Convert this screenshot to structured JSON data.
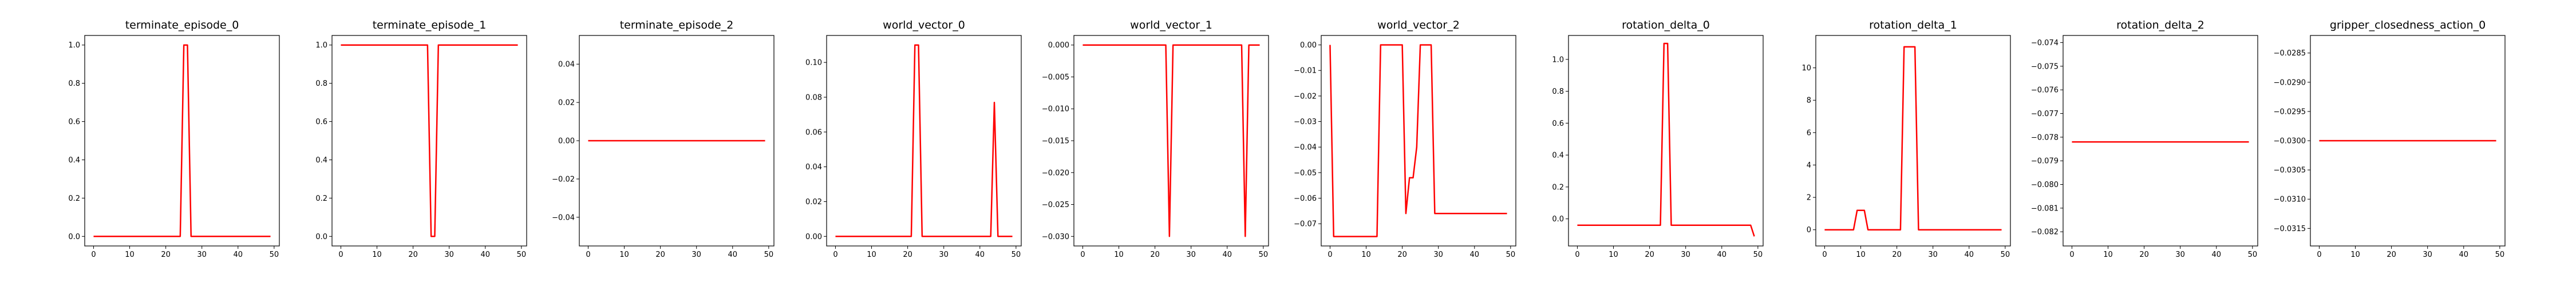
{
  "chart_data": [
    {
      "type": "line",
      "title": "terminate_episode_0",
      "xlim": [
        -2.45,
        51.45
      ],
      "ylim": [
        -0.05,
        1.05
      ],
      "xticks": [
        0,
        10,
        20,
        30,
        40,
        50
      ],
      "xtick_labels": [
        "0",
        "10",
        "20",
        "30",
        "40",
        "50"
      ],
      "yticks": [
        0.0,
        0.2,
        0.4,
        0.6,
        0.8,
        1.0
      ],
      "ytick_labels": [
        "0.0",
        "0.2",
        "0.4",
        "0.6",
        "0.8",
        "1.0"
      ],
      "series": [
        {
          "color": "#ff0000",
          "x": [
            0,
            24,
            25,
            26,
            27,
            49
          ],
          "y": [
            0,
            0,
            1,
            1,
            0,
            0
          ]
        }
      ]
    },
    {
      "type": "line",
      "title": "terminate_episode_1",
      "xlim": [
        -2.45,
        51.45
      ],
      "ylim": [
        -0.05,
        1.05
      ],
      "xticks": [
        0,
        10,
        20,
        30,
        40,
        50
      ],
      "xtick_labels": [
        "0",
        "10",
        "20",
        "30",
        "40",
        "50"
      ],
      "yticks": [
        0.0,
        0.2,
        0.4,
        0.6,
        0.8,
        1.0
      ],
      "ytick_labels": [
        "0.0",
        "0.2",
        "0.4",
        "0.6",
        "0.8",
        "1.0"
      ],
      "series": [
        {
          "color": "#ff0000",
          "x": [
            0,
            24,
            25,
            26,
            27,
            49
          ],
          "y": [
            1,
            1,
            0,
            0,
            1,
            1
          ]
        }
      ]
    },
    {
      "type": "line",
      "title": "terminate_episode_2",
      "xlim": [
        -2.45,
        51.45
      ],
      "ylim": [
        -0.055,
        0.055
      ],
      "xticks": [
        0,
        10,
        20,
        30,
        40,
        50
      ],
      "xtick_labels": [
        "0",
        "10",
        "20",
        "30",
        "40",
        "50"
      ],
      "yticks": [
        -0.04,
        -0.02,
        0.0,
        0.02,
        0.04
      ],
      "ytick_labels": [
        "−0.04",
        "−0.02",
        "0.00",
        "0.02",
        "0.04"
      ],
      "series": [
        {
          "color": "#ff0000",
          "x": [
            0,
            49
          ],
          "y": [
            0,
            0
          ]
        }
      ]
    },
    {
      "type": "line",
      "title": "world_vector_0",
      "xlim": [
        -2.45,
        51.45
      ],
      "ylim": [
        -0.0055,
        0.1155
      ],
      "xticks": [
        0,
        10,
        20,
        30,
        40,
        50
      ],
      "xtick_labels": [
        "0",
        "10",
        "20",
        "30",
        "40",
        "50"
      ],
      "yticks": [
        0.0,
        0.02,
        0.04,
        0.06,
        0.08,
        0.1
      ],
      "ytick_labels": [
        "0.00",
        "0.02",
        "0.04",
        "0.06",
        "0.08",
        "0.10"
      ],
      "series": [
        {
          "color": "#ff0000",
          "x": [
            0,
            21,
            22,
            23,
            24,
            43,
            44,
            45,
            49
          ],
          "y": [
            0,
            0,
            0.11,
            0.11,
            0,
            0,
            0.077,
            0,
            0
          ]
        }
      ]
    },
    {
      "type": "line",
      "title": "world_vector_1",
      "xlim": [
        -2.45,
        51.45
      ],
      "ylim": [
        -0.0315,
        0.0015
      ],
      "xticks": [
        0,
        10,
        20,
        30,
        40,
        50
      ],
      "xtick_labels": [
        "0",
        "10",
        "20",
        "30",
        "40",
        "50"
      ],
      "yticks": [
        0.0,
        -0.005,
        -0.01,
        -0.015,
        -0.02,
        -0.025,
        -0.03
      ],
      "ytick_labels": [
        "0.000",
        "−0.005",
        "−0.010",
        "−0.015",
        "−0.020",
        "−0.025",
        "−0.030"
      ],
      "series": [
        {
          "color": "#ff0000",
          "x": [
            0,
            23,
            24,
            25,
            44,
            45,
            46,
            49
          ],
          "y": [
            0,
            0,
            -0.03,
            0,
            0,
            -0.03,
            0,
            0
          ]
        }
      ]
    },
    {
      "type": "line",
      "title": "world_vector_2",
      "xlim": [
        -2.45,
        51.45
      ],
      "ylim": [
        -0.0787,
        0.0037
      ],
      "xticks": [
        0,
        10,
        20,
        30,
        40,
        50
      ],
      "xtick_labels": [
        "0",
        "10",
        "20",
        "30",
        "40",
        "50"
      ],
      "yticks": [
        0.0,
        -0.01,
        -0.02,
        -0.03,
        -0.04,
        -0.05,
        -0.06,
        -0.07
      ],
      "ytick_labels": [
        "0.00",
        "−0.01",
        "−0.02",
        "−0.03",
        "−0.04",
        "−0.05",
        "−0.06",
        "−0.07"
      ],
      "series": [
        {
          "color": "#ff0000",
          "x": [
            0,
            1,
            13,
            14,
            20,
            21,
            22,
            23,
            24,
            25,
            28,
            29,
            49
          ],
          "y": [
            0,
            -0.075,
            -0.075,
            0,
            0,
            -0.066,
            -0.052,
            -0.052,
            -0.04,
            0,
            0,
            -0.066,
            -0.066
          ]
        }
      ]
    },
    {
      "type": "line",
      "title": "rotation_delta_0",
      "xlim": [
        -2.45,
        51.45
      ],
      "ylim": [
        -0.17,
        1.15
      ],
      "xticks": [
        0,
        10,
        20,
        30,
        40,
        50
      ],
      "xtick_labels": [
        "0",
        "10",
        "20",
        "30",
        "40",
        "50"
      ],
      "yticks": [
        0.0,
        0.2,
        0.4,
        0.6,
        0.8,
        1.0
      ],
      "ytick_labels": [
        "0.0",
        "0.2",
        "0.4",
        "0.6",
        "0.8",
        "1.0"
      ],
      "series": [
        {
          "color": "#ff0000",
          "x": [
            0,
            23,
            24,
            25,
            26,
            48,
            49
          ],
          "y": [
            -0.04,
            -0.04,
            1.1,
            1.1,
            -0.04,
            -0.04,
            -0.11
          ]
        }
      ]
    },
    {
      "type": "line",
      "title": "rotation_delta_1",
      "xlim": [
        -2.45,
        51.45
      ],
      "ylim": [
        -1.0,
        12.0
      ],
      "xticks": [
        0,
        10,
        20,
        30,
        40,
        50
      ],
      "xtick_labels": [
        "0",
        "10",
        "20",
        "30",
        "40",
        "50"
      ],
      "yticks": [
        0,
        2,
        4,
        6,
        8,
        10
      ],
      "ytick_labels": [
        "0",
        "2",
        "4",
        "6",
        "8",
        "10"
      ],
      "series": [
        {
          "color": "#ff0000",
          "x": [
            0,
            8,
            9,
            11,
            12,
            21,
            22,
            25,
            26,
            49
          ],
          "y": [
            0,
            0,
            1.2,
            1.2,
            0,
            0,
            11.3,
            11.3,
            0,
            0
          ]
        }
      ]
    },
    {
      "type": "line",
      "title": "rotation_delta_2",
      "xlim": [
        -2.45,
        51.45
      ],
      "ylim": [
        -0.0826,
        -0.0737
      ],
      "xticks": [
        0,
        10,
        20,
        30,
        40,
        50
      ],
      "xtick_labels": [
        "0",
        "10",
        "20",
        "30",
        "40",
        "50"
      ],
      "yticks": [
        -0.074,
        -0.075,
        -0.076,
        -0.077,
        -0.078,
        -0.079,
        -0.08,
        -0.081,
        -0.082
      ],
      "ytick_labels": [
        "−0.074",
        "−0.075",
        "−0.076",
        "−0.077",
        "−0.078",
        "−0.079",
        "−0.080",
        "−0.081",
        "−0.082"
      ],
      "series": [
        {
          "color": "#ff0000",
          "x": [
            0,
            49
          ],
          "y": [
            -0.0782,
            -0.0782
          ]
        }
      ]
    },
    {
      "type": "line",
      "title": "gripper_closedness_action_0",
      "xlim": [
        -2.45,
        51.45
      ],
      "ylim": [
        -0.0318,
        -0.0282
      ],
      "xticks": [
        0,
        10,
        20,
        30,
        40,
        50
      ],
      "xtick_labels": [
        "0",
        "10",
        "20",
        "30",
        "40",
        "50"
      ],
      "yticks": [
        -0.0285,
        -0.029,
        -0.0295,
        -0.03,
        -0.0305,
        -0.031,
        -0.0315
      ],
      "ytick_labels": [
        "−0.0285",
        "−0.0290",
        "−0.0295",
        "−0.0300",
        "−0.0305",
        "−0.0310",
        "−0.0315"
      ],
      "series": [
        {
          "color": "#ff0000",
          "x": [
            0,
            49
          ],
          "y": [
            -0.03,
            -0.03
          ]
        }
      ]
    }
  ]
}
